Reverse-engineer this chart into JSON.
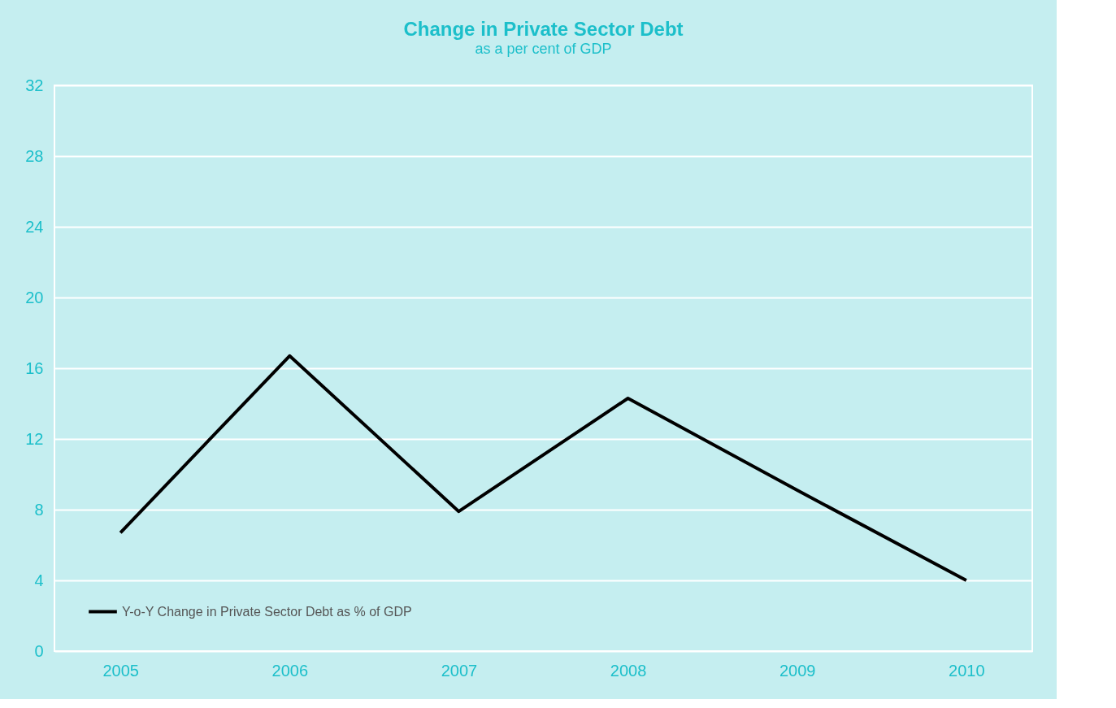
{
  "chart_data": {
    "type": "line",
    "title": "Change in Private Sector Debt",
    "subtitle": "as a per cent of GDP",
    "categories": [
      "2005",
      "2006",
      "2007",
      "2008",
      "2009",
      "2010"
    ],
    "series": [
      {
        "name": "Y-o-Y Change in Private Sector Debt as % of GDP",
        "color": "#000000",
        "values": [
          6.7,
          16.7,
          7.9,
          14.3,
          9.1,
          4.0
        ]
      }
    ],
    "ylim": [
      0,
      32
    ],
    "yticks": [
      0,
      4,
      8,
      12,
      16,
      20,
      24,
      28,
      32
    ],
    "grid": "y",
    "legend": "bottom left",
    "marker": "none",
    "line_style": "solid"
  }
}
